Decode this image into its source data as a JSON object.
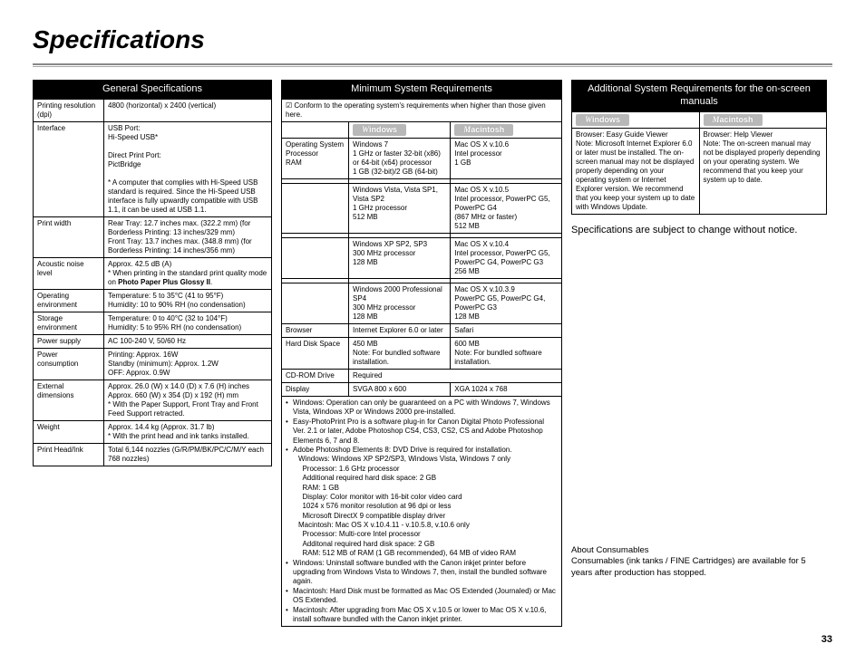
{
  "page": {
    "title": "Specifications",
    "number": "33"
  },
  "general": {
    "header": "General Specifications",
    "rows": [
      {
        "label": "Printing resolution (dpi)",
        "value": "4800 (horizontal) x 2400 (vertical)"
      },
      {
        "label": "Interface",
        "value": "USB Port:\nHi-Speed USB*\n\nDirect Print Port:\nPictBridge\n\n* A computer that complies with Hi-Speed USB standard is required. Since the Hi-Speed USB interface is fully upwardly compatible with USB 1.1, it can be used at USB 1.1."
      },
      {
        "label": "Print width",
        "value": "Rear Tray: 12.7 inches max. (322.2 mm) (for Borderless Printing: 13 inches/329 mm)\nFront Tray: 13.7 inches max. (348.8 mm) (for Borderless Printing: 14 inches/356 mm)"
      },
      {
        "label": "Acoustic noise level",
        "value": "Approx. 42.5 dB (A)\n* When printing in the standard print quality mode on Photo Paper Plus Glossy II."
      },
      {
        "label": "Operating environment",
        "value": "Temperature: 5 to 35°C (41 to 95°F)\nHumidity: 10 to 90% RH (no condensation)"
      },
      {
        "label": "Storage environment",
        "value": "Temperature: 0 to 40°C (32 to 104°F)\nHumidity: 5 to 95% RH (no condensation)"
      },
      {
        "label": "Power supply",
        "value": "AC 100-240 V, 50/60 Hz"
      },
      {
        "label": "Power consumption",
        "value": "Printing: Approx. 16W\nStandby (minimum): Approx. 1.2W\nOFF: Approx. 0.9W"
      },
      {
        "label": "External dimensions",
        "value": "Approx. 26.0 (W) x 14.0 (D) x 7.6 (H) inches\nApprox. 660 (W) x 354 (D) x 192 (H) mm\n* With the Paper Support, Front Tray and Front Feed Support retracted."
      },
      {
        "label": "Weight",
        "value": "Approx. 14.4 kg (Approx. 31.7 lb)\n* With the print head and ink tanks installed."
      },
      {
        "label": "Print Head/Ink",
        "value": "Total 6,144 nozzles (G/R/PM/BK/PC/C/M/Y each 768 nozzles)"
      }
    ]
  },
  "minreq": {
    "header": "Minimum System Requirements",
    "conform_icon": "☑",
    "conform_text": "Conform to the operating system's requirements when higher than those given here.",
    "win_label": "Windows",
    "mac_label": "Macintosh",
    "os_label": "Operating System Processor\nRAM",
    "os_win": [
      "Windows 7\n1 GHz or faster 32-bit (x86) or 64-bit (x64) processor\n1 GB (32-bit)/2 GB (64-bit)",
      "Windows Vista, Vista SP1, Vista SP2\n1 GHz processor\n512 MB",
      "Windows XP SP2, SP3\n300 MHz processor\n128 MB",
      "Windows 2000 Professional SP4\n300 MHz processor\n128 MB"
    ],
    "os_mac": [
      "Mac OS X v.10.6\nIntel processor\n1 GB",
      "Mac OS X v.10.5\nIntel processor, PowerPC G5, PowerPC G4\n(867 MHz or faster)\n512 MB",
      "Mac OS X v.10.4\nIntel processor, PowerPC G5, PowerPC G4, PowerPC G3\n256 MB",
      "Mac OS X v.10.3.9\nPowerPC G5, PowerPC G4, PowerPC G3\n128 MB"
    ],
    "browser": {
      "label": "Browser",
      "win": "Internet Explorer 6.0 or later",
      "mac": "Safari"
    },
    "hdd": {
      "label": "Hard Disk Space",
      "win": "450 MB\nNote: For bundled software installation.",
      "mac": "600 MB\nNote: For bundled software installation."
    },
    "cdrom": {
      "label": "CD-ROM Drive",
      "value": "Required"
    },
    "display": {
      "label": "Display",
      "win": "SVGA 800 x 600",
      "mac": "XGA 1024 x 768"
    },
    "notes": [
      "Windows: Operation can only be guaranteed on a PC with Windows 7, Windows Vista, Windows XP or Windows 2000 pre-installed.",
      "Easy-PhotoPrint Pro is a software plug-in for Canon Digital Photo Professional Ver. 2.1 or later, Adobe Photoshop CS4, CS3, CS2, CS and Adobe Photoshop Elements 6, 7 and 8.",
      "Adobe Photoshop Elements 8: DVD Drive is required for installation.",
      "Windows: Uninstall software bundled with the Canon inkjet printer before upgrading from Windows Vista to Windows 7, then, install the bundled software again.",
      "Macintosh: Hard Disk must be formatted as Mac OS Extended (Journaled) or Mac OS Extended.",
      "Macintosh: After upgrading from Mac OS X v.10.5 or lower to Mac OS X v.10.6, install software bundled with the Canon inkjet printer."
    ],
    "notes_sub": {
      "ps8_header": "Windows: Windows XP SP2/SP3, Windows Vista, Windows 7 only",
      "ps8_lines": [
        "Processor: 1.6 GHz processor",
        "Additional required hard disk space: 2 GB",
        "RAM: 1 GB",
        "Display: Color monitor with 16-bit color video card",
        "1024 x 576 monitor resolution at 96 dpi or less",
        "Microsoft DirectX 9 compatible display driver"
      ],
      "mac_header": "Macintosh: Mac OS X v.10.4.11 - v.10.5.8, v.10.6 only",
      "mac_lines": [
        "Processor: Multi-core Intel processor",
        "Additonal required hard disk space: 2 GB",
        "RAM: 512 MB of RAM (1 GB recommended), 64 MB of video RAM"
      ]
    }
  },
  "addreq": {
    "header": "Additional System Requirements for the on-screen manuals",
    "win_label": "Windows",
    "mac_label": "Macintosh",
    "win_text": "Browser: Easy Guide Viewer\nNote: Microsoft Internet Explorer 6.0 or later must be installed. The on-screen manual may not be displayed properly depending on your operating system or Internet Explorer version. We recommend that you keep your system up to date with Windows Update.",
    "mac_text": "Browser: Help Viewer\nNote: The on-screen manual may not be displayed properly depending on your operating system. We recommend that you keep your system up to date."
  },
  "change_notice": "Specifications are subject to change without notice.",
  "consumables": {
    "title": "About Consumables",
    "text": "Consumables (ink tanks / FINE Cartridges) are available for 5 years after production has stopped."
  },
  "bold_phrase": "Photo Paper Plus Glossy II"
}
